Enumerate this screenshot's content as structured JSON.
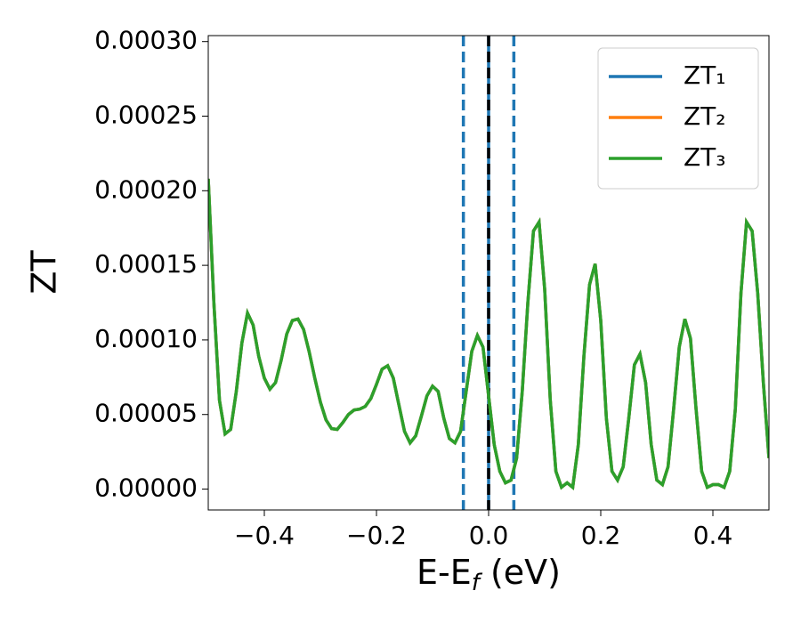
{
  "chart_data": {
    "type": "line",
    "xlabel": [
      "E-E",
      "f",
      " (eV)"
    ],
    "ylabel": "ZT",
    "x": [
      -0.5,
      -0.49,
      -0.48,
      -0.47,
      -0.46,
      -0.45,
      -0.44,
      -0.43,
      -0.42,
      -0.41,
      -0.4,
      -0.39,
      -0.38,
      -0.37,
      -0.36,
      -0.35,
      -0.34,
      -0.33,
      -0.32,
      -0.31,
      -0.3,
      -0.29,
      -0.28,
      -0.27,
      -0.26,
      -0.25,
      -0.24,
      -0.23,
      -0.22,
      -0.21,
      -0.2,
      -0.19,
      -0.18,
      -0.17,
      -0.16,
      -0.15,
      -0.14,
      -0.13,
      -0.12,
      -0.11,
      -0.1,
      -0.09,
      -0.08,
      -0.07,
      -0.06,
      -0.05,
      -0.04,
      -0.03,
      -0.02,
      -0.01,
      0,
      0.01,
      0.02,
      0.03,
      0.04,
      0.05,
      0.06,
      0.07,
      0.08,
      0.09,
      0.1,
      0.11,
      0.12,
      0.13,
      0.14,
      0.15,
      0.16,
      0.17,
      0.18,
      0.19,
      0.2,
      0.21,
      0.22,
      0.23,
      0.24,
      0.25,
      0.26,
      0.27,
      0.28,
      0.29,
      0.3,
      0.31,
      0.32,
      0.33,
      0.34,
      0.35,
      0.36,
      0.37,
      0.38,
      0.39,
      0.4,
      0.41,
      0.42,
      0.43,
      0.44,
      0.45,
      0.46,
      0.47,
      0.48,
      0.49,
      0.5
    ],
    "series": [
      {
        "name": "ZT₁",
        "color": "#1f77b4",
        "values": [
          0.000208,
          0.000125,
          5.95e-05,
          3.7e-05,
          4e-05,
          6.55e-05,
          9.8e-05,
          0.000118,
          0.00011,
          8.9e-05,
          7.44e-05,
          6.7e-05,
          7.14e-05,
          8.63e-05,
          0.000104,
          0.000113,
          0.000114,
          0.000107,
          9.2e-05,
          7.44e-05,
          5.83e-05,
          4.64e-05,
          4.05e-05,
          4e-05,
          4.46e-05,
          5e-05,
          5.3e-05,
          5.36e-05,
          5.54e-05,
          6.07e-05,
          7.02e-05,
          8.04e-05,
          8.27e-05,
          7.44e-05,
          5.65e-05,
          3.87e-05,
          3.1e-05,
          3.57e-05,
          4.88e-05,
          6.25e-05,
          6.9e-05,
          6.55e-05,
          4.76e-05,
          3.39e-05,
          3.1e-05,
          3.87e-05,
          6.55e-05,
          9.23e-05,
          0.000103,
          9.52e-05,
          6.25e-05,
          2.98e-05,
          1.19e-05,
          4.2e-06,
          6e-06,
          2.08e-05,
          6.55e-05,
          0.000125,
          0.000173,
          0.000179,
          0.000134,
          5.95e-05,
          1.19e-05,
          1.2e-06,
          4.2e-06,
          1.2e-06,
          2.98e-05,
          8.93e-05,
          0.000137,
          0.000151,
          0.000113,
          4.76e-05,
          1.19e-05,
          6e-06,
          1.49e-05,
          4.76e-05,
          8.33e-05,
          9.05e-05,
          7.14e-05,
          2.98e-05,
          6e-06,
          3e-06,
          1.49e-05,
          5.36e-05,
          9.52e-05,
          0.000114,
          0.000101,
          5.36e-05,
          1.19e-05,
          1.2e-06,
          3e-06,
          3e-06,
          1.2e-06,
          1.19e-05,
          5.36e-05,
          0.000131,
          0.000179,
          0.000173,
          0.000131,
          7.14e-05,
          2.08e-05
        ]
      },
      {
        "name": "ZT₂",
        "color": "#ff7f0e",
        "values": [
          0.000208,
          0.000125,
          5.95e-05,
          3.7e-05,
          4e-05,
          6.55e-05,
          9.8e-05,
          0.000118,
          0.00011,
          8.9e-05,
          7.44e-05,
          6.7e-05,
          7.14e-05,
          8.63e-05,
          0.000104,
          0.000113,
          0.000114,
          0.000107,
          9.2e-05,
          7.44e-05,
          5.83e-05,
          4.64e-05,
          4.05e-05,
          4e-05,
          4.46e-05,
          5e-05,
          5.3e-05,
          5.36e-05,
          5.54e-05,
          6.07e-05,
          7.02e-05,
          8.04e-05,
          8.27e-05,
          7.44e-05,
          5.65e-05,
          3.87e-05,
          3.1e-05,
          3.57e-05,
          4.88e-05,
          6.25e-05,
          6.9e-05,
          6.55e-05,
          4.76e-05,
          3.39e-05,
          3.1e-05,
          3.87e-05,
          6.55e-05,
          9.23e-05,
          0.000103,
          9.52e-05,
          6.25e-05,
          2.98e-05,
          1.19e-05,
          4.2e-06,
          6e-06,
          2.08e-05,
          6.55e-05,
          0.000125,
          0.000173,
          0.000179,
          0.000134,
          5.95e-05,
          1.19e-05,
          1.2e-06,
          4.2e-06,
          1.2e-06,
          2.98e-05,
          8.93e-05,
          0.000137,
          0.000151,
          0.000113,
          4.76e-05,
          1.19e-05,
          6e-06,
          1.49e-05,
          4.76e-05,
          8.33e-05,
          9.05e-05,
          7.14e-05,
          2.98e-05,
          6e-06,
          3e-06,
          1.49e-05,
          5.36e-05,
          9.52e-05,
          0.000114,
          0.000101,
          5.36e-05,
          1.19e-05,
          1.2e-06,
          3e-06,
          3e-06,
          1.2e-06,
          1.19e-05,
          5.36e-05,
          0.000131,
          0.000179,
          0.000173,
          0.000131,
          7.14e-05,
          2.08e-05
        ]
      },
      {
        "name": "ZT₃",
        "color": "#2ca02c",
        "values": [
          0.000208,
          0.000125,
          5.95e-05,
          3.7e-05,
          4e-05,
          6.55e-05,
          9.8e-05,
          0.000118,
          0.00011,
          8.9e-05,
          7.44e-05,
          6.7e-05,
          7.14e-05,
          8.63e-05,
          0.000104,
          0.000113,
          0.000114,
          0.000107,
          9.2e-05,
          7.44e-05,
          5.83e-05,
          4.64e-05,
          4.05e-05,
          4e-05,
          4.46e-05,
          5e-05,
          5.3e-05,
          5.36e-05,
          5.54e-05,
          6.07e-05,
          7.02e-05,
          8.04e-05,
          8.27e-05,
          7.44e-05,
          5.65e-05,
          3.87e-05,
          3.1e-05,
          3.57e-05,
          4.88e-05,
          6.25e-05,
          6.9e-05,
          6.55e-05,
          4.76e-05,
          3.39e-05,
          3.1e-05,
          3.87e-05,
          6.55e-05,
          9.23e-05,
          0.000103,
          9.52e-05,
          6.25e-05,
          2.98e-05,
          1.19e-05,
          4.2e-06,
          6e-06,
          2.08e-05,
          6.55e-05,
          0.000125,
          0.000173,
          0.000179,
          0.000134,
          5.95e-05,
          1.19e-05,
          1.2e-06,
          4.2e-06,
          1.2e-06,
          2.98e-05,
          8.93e-05,
          0.000137,
          0.000151,
          0.000113,
          4.76e-05,
          1.19e-05,
          6e-06,
          1.49e-05,
          4.76e-05,
          8.33e-05,
          9.05e-05,
          7.14e-05,
          2.98e-05,
          6e-06,
          3e-06,
          1.49e-05,
          5.36e-05,
          9.52e-05,
          0.000114,
          0.000101,
          5.36e-05,
          1.19e-05,
          1.2e-06,
          3e-06,
          3e-06,
          1.2e-06,
          1.19e-05,
          5.36e-05,
          0.000131,
          0.000179,
          0.000173,
          0.000131,
          7.14e-05,
          2.08e-05
        ]
      }
    ],
    "vlines": [
      {
        "x": 0,
        "color": "#1f77b4",
        "style": "solid"
      },
      {
        "x": -0.045,
        "color": "#1f77b4",
        "style": "dashed"
      },
      {
        "x": 0.045,
        "color": "#1f77b4",
        "style": "dashed"
      },
      {
        "x": 0,
        "color": "#000000",
        "style": "dashed"
      }
    ],
    "xlim": [
      -0.5,
      0.5
    ],
    "xticks": [
      {
        "value": -0.4,
        "label": "−0.4"
      },
      {
        "value": -0.2,
        "label": "−0.2"
      },
      {
        "value": 0,
        "label": "0.0"
      },
      {
        "value": 0.2,
        "label": "0.2"
      },
      {
        "value": 0.4,
        "label": "0.4"
      }
    ],
    "ylim": [
      -1.4e-05,
      0.000304
    ],
    "yticks": [
      {
        "value": 0,
        "label": "0.00000"
      },
      {
        "value": 5e-05,
        "label": "0.00005"
      },
      {
        "value": 0.0001,
        "label": "0.00010"
      },
      {
        "value": 0.00015,
        "label": "0.00015"
      },
      {
        "value": 0.0002,
        "label": "0.00020"
      },
      {
        "value": 0.00025,
        "label": "0.00025"
      },
      {
        "value": 0.0003,
        "label": "0.00030"
      }
    ],
    "legend": "upper right",
    "grid": false
  }
}
